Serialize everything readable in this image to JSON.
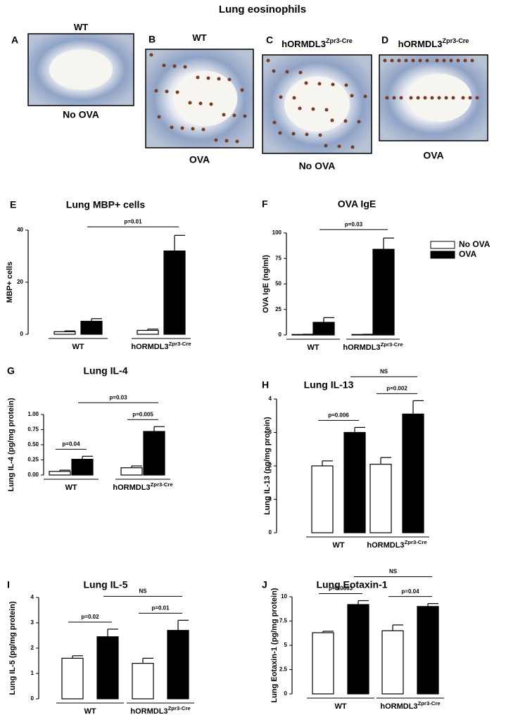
{
  "title": "Lung eosinophils",
  "micrographs": [
    {
      "letter": "A",
      "title": "WT",
      "title_sup": null,
      "caption": "No OVA"
    },
    {
      "letter": "B",
      "title": "WT",
      "title_sup": null,
      "caption": "OVA"
    },
    {
      "letter": "C",
      "title": "hORMDL3",
      "title_sup": "Zpr3-Cre",
      "caption": "No OVA"
    },
    {
      "letter": "D",
      "title": "hORMDL3",
      "title_sup": "Zpr3-Cre",
      "caption": "OVA"
    }
  ],
  "chart_data": [
    {
      "type": "bar",
      "panel": "E",
      "title": "Lung MBP+ cells",
      "y_label": "MBP+ cells",
      "categories": [
        "WT",
        "hORMDL3"
      ],
      "category_superscripts": [
        null,
        "Zpr3-Cre"
      ],
      "series": [
        {
          "color": "#ffffff",
          "values": [
            1,
            1.5
          ],
          "errors": [
            0.3,
            0.5
          ]
        },
        {
          "color": "#000000",
          "values": [
            5,
            32
          ],
          "errors": [
            1,
            6
          ]
        }
      ],
      "ylim": [
        0,
        40
      ],
      "yticks": [
        0,
        20,
        40
      ],
      "comparisons": [
        {
          "label": "p=0.01",
          "series": [
            1,
            1
          ],
          "groups": [
            0,
            1
          ]
        }
      ]
    },
    {
      "type": "bar",
      "panel": "F",
      "title": "OVA IgE",
      "y_label": "OVA IgE (ng/ml)",
      "categories": [
        "WT",
        "hORMDL3"
      ],
      "category_superscripts": [
        null,
        "Zpr3-Cre"
      ],
      "series": [
        {
          "name": "No OVA",
          "color": "#ffffff",
          "values": [
            0.5,
            0.5
          ],
          "errors": [
            0.2,
            0.2
          ]
        },
        {
          "name": "OVA",
          "color": "#000000",
          "values": [
            12.4,
            84
          ],
          "errors": [
            4.6,
            11
          ]
        }
      ],
      "ylim": [
        0,
        100
      ],
      "yticks": [
        0,
        25,
        50,
        75,
        100
      ],
      "legend": true,
      "comparisons": [
        {
          "label": "p=0.03",
          "series": [
            1,
            1
          ],
          "groups": [
            0,
            1
          ]
        }
      ]
    },
    {
      "type": "bar",
      "panel": "G",
      "title": "Lung IL-4",
      "y_label": "Lung IL-4 (pg/mg protein)",
      "categories": [
        "WT",
        "hORMDL3"
      ],
      "category_superscripts": [
        null,
        "Zpr3-Cre"
      ],
      "series": [
        {
          "color": "#ffffff",
          "values": [
            0.06,
            0.12
          ],
          "errors": [
            0.02,
            0.03
          ]
        },
        {
          "color": "#000000",
          "values": [
            0.26,
            0.72
          ],
          "errors": [
            0.05,
            0.08
          ]
        }
      ],
      "ylim": [
        0,
        1
      ],
      "yticks": [
        {
          "value": 0,
          "label": "0.00"
        },
        {
          "value": 0.25,
          "label": "0.25"
        },
        {
          "value": 0.5,
          "label": "0.50"
        },
        {
          "value": 0.75,
          "label": "0.75"
        },
        {
          "value": 1,
          "label": "1.00"
        }
      ],
      "comparisons": [
        {
          "label": "p=0.04",
          "series": [
            0,
            1
          ],
          "groups": [
            0,
            0
          ]
        },
        {
          "label": "p=0.005",
          "series": [
            0,
            1
          ],
          "groups": [
            1,
            1
          ]
        },
        {
          "label": "p=0.03",
          "series": [
            1,
            1
          ],
          "groups": [
            0,
            1
          ]
        }
      ]
    },
    {
      "type": "bar",
      "panel": "H",
      "title": "Lung IL-13",
      "y_label": "Lung IL-13 (pg/mg protein)",
      "categories": [
        "WT",
        "hORMDL3"
      ],
      "category_superscripts": [
        null,
        "Zpr3-Cre"
      ],
      "series": [
        {
          "color": "#ffffff",
          "values": [
            2.0,
            2.05
          ],
          "errors": [
            0.15,
            0.2
          ]
        },
        {
          "color": "#000000",
          "values": [
            3.0,
            3.55
          ],
          "errors": [
            0.15,
            0.4
          ]
        }
      ],
      "ylim": [
        0,
        4
      ],
      "yticks": [
        0,
        1,
        2,
        3,
        4
      ],
      "comparisons": [
        {
          "label": "p=0.006",
          "series": [
            0,
            1
          ],
          "groups": [
            0,
            0
          ]
        },
        {
          "label": "p=0.002",
          "series": [
            0,
            1
          ],
          "groups": [
            1,
            1
          ]
        },
        {
          "label": "NS",
          "series": [
            1,
            1
          ],
          "groups": [
            0,
            1
          ]
        }
      ]
    },
    {
      "type": "bar",
      "panel": "I",
      "title": "Lung IL-5",
      "y_label": "Lung IL-5 (pg/mg protein)",
      "categories": [
        "WT",
        "hORMDL3"
      ],
      "category_superscripts": [
        null,
        "Zpr3-Cre"
      ],
      "series": [
        {
          "color": "#ffffff",
          "values": [
            1.6,
            1.4
          ],
          "errors": [
            0.1,
            0.2
          ]
        },
        {
          "color": "#000000",
          "values": [
            2.45,
            2.7
          ],
          "errors": [
            0.3,
            0.4
          ]
        }
      ],
      "ylim": [
        0,
        4
      ],
      "yticks": [
        0,
        1,
        2,
        3,
        4
      ],
      "comparisons": [
        {
          "label": "p=0.02",
          "series": [
            0,
            1
          ],
          "groups": [
            0,
            0
          ]
        },
        {
          "label": "p=0.01",
          "series": [
            0,
            1
          ],
          "groups": [
            1,
            1
          ]
        },
        {
          "label": "NS",
          "series": [
            1,
            1
          ],
          "groups": [
            0,
            1
          ]
        }
      ]
    },
    {
      "type": "bar",
      "panel": "J",
      "title": "Lung Eotaxin-1",
      "y_label": "Lung Eotaxin-1 (pg/mg protein)",
      "categories": [
        "WT",
        "hORMDL3"
      ],
      "category_superscripts": [
        null,
        "Zpr3-Cre"
      ],
      "series": [
        {
          "color": "#ffffff",
          "values": [
            6.3,
            6.5
          ],
          "errors": [
            0.15,
            0.6
          ]
        },
        {
          "color": "#000000",
          "values": [
            9.2,
            9.0
          ],
          "errors": [
            0.4,
            0.3
          ]
        }
      ],
      "ylim": [
        0,
        10
      ],
      "yticks": [
        0,
        2.5,
        5,
        7.5,
        10
      ],
      "comparisons": [
        {
          "label": "p=0.0003",
          "series": [
            0,
            1
          ],
          "groups": [
            0,
            0
          ]
        },
        {
          "label": "p=0.04",
          "series": [
            0,
            1
          ],
          "groups": [
            1,
            1
          ]
        },
        {
          "label": "NS",
          "series": [
            1,
            1
          ],
          "groups": [
            0,
            1
          ]
        }
      ]
    }
  ]
}
